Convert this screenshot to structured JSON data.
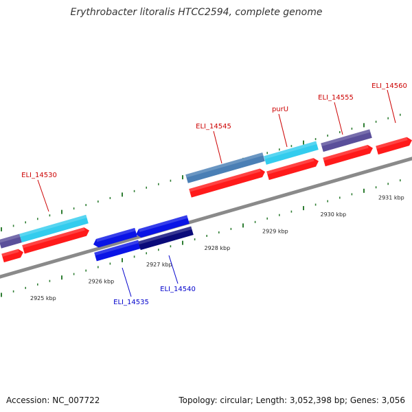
{
  "title": "Erythrobacter litoralis HTCC2594, complete genome",
  "footer": {
    "accession": "Accession: NC_007722",
    "summary": "Topology: circular; Length: 3,052,398 bp; Genes: 3,056"
  },
  "axis": {
    "unit": "kbp",
    "tick_labels": [
      {
        "kbp": 2925,
        "label": "2925 kbp"
      },
      {
        "kbp": 2926,
        "label": "2926 kbp"
      },
      {
        "kbp": 2927,
        "label": "2927 kbp"
      },
      {
        "kbp": 2928,
        "label": "2928 kbp"
      },
      {
        "kbp": 2929,
        "label": "2929 kbp"
      },
      {
        "kbp": 2930,
        "label": "2930 kbp"
      },
      {
        "kbp": 2931,
        "label": "2931 kbp"
      }
    ]
  },
  "colors": {
    "backbone": "#8a8a8a",
    "tick": "#2e7d32",
    "forward_label": "#cc0000",
    "reverse_label": "#0000cc",
    "cds_forward": "#ff1a1a",
    "cds_reverse": "#0a14e6",
    "feature_cyan": "#33ccee",
    "feature_steel": "#4a7fb5",
    "feature_purple": "#5a4f9a",
    "feature_navy": "#0a0a7a"
  },
  "genes": [
    {
      "name": "ELI_14530",
      "strand": "+"
    },
    {
      "name": "ELI_14535",
      "strand": "-"
    },
    {
      "name": "ELI_14540",
      "strand": "-"
    },
    {
      "name": "ELI_14545",
      "strand": "+"
    },
    {
      "name": "purU",
      "strand": "+"
    },
    {
      "name": "ELI_14555",
      "strand": "+"
    },
    {
      "name": "ELI_14560",
      "strand": "+"
    }
  ]
}
